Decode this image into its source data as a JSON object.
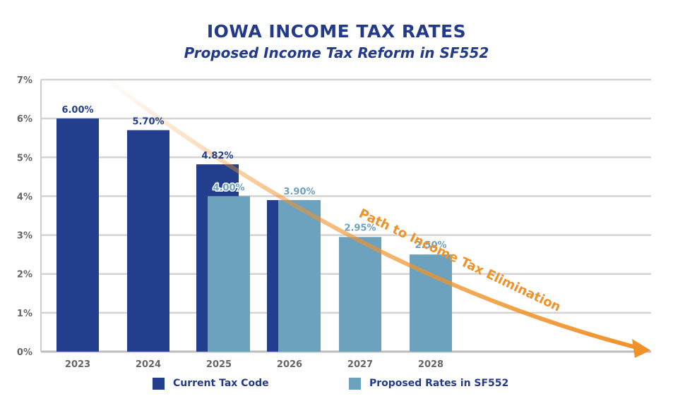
{
  "colors": {
    "current": "#233e8c",
    "proposed": "#6da2bf",
    "title": "#233a8a",
    "arrow": "#f0922a",
    "grid": "#d3d3d3",
    "axis_text": "#666666"
  },
  "chart_data": {
    "type": "bar",
    "title": "IOWA INCOME TAX RATES",
    "subtitle": "Proposed Income Tax Reform in SF552",
    "xlabel": "",
    "ylabel": "",
    "ylim": [
      0,
      7
    ],
    "grid": true,
    "legend_position": "bottom",
    "y_ticks": [
      "0%",
      "1%",
      "2%",
      "3%",
      "4%",
      "5%",
      "6%",
      "7%"
    ],
    "categories": [
      "2023",
      "2024",
      "2025",
      "2026",
      "2027",
      "2028"
    ],
    "series": [
      {
        "name": "Current Tax Code",
        "color": "#233e8c",
        "values": [
          6.0,
          5.7,
          4.82,
          3.9,
          null,
          null
        ],
        "labels": [
          "6.00%",
          "5.70%",
          "4.82%",
          "",
          "",
          ""
        ]
      },
      {
        "name": "Proposed Rates in SF552",
        "color": "#6da2bf",
        "values": [
          null,
          null,
          4.0,
          3.9,
          2.95,
          2.5
        ],
        "labels": [
          "",
          "",
          "4.00%",
          "3.90%",
          "2.95%",
          "2.50%"
        ]
      }
    ],
    "annotation": "Path to Income Tax Elimination"
  }
}
